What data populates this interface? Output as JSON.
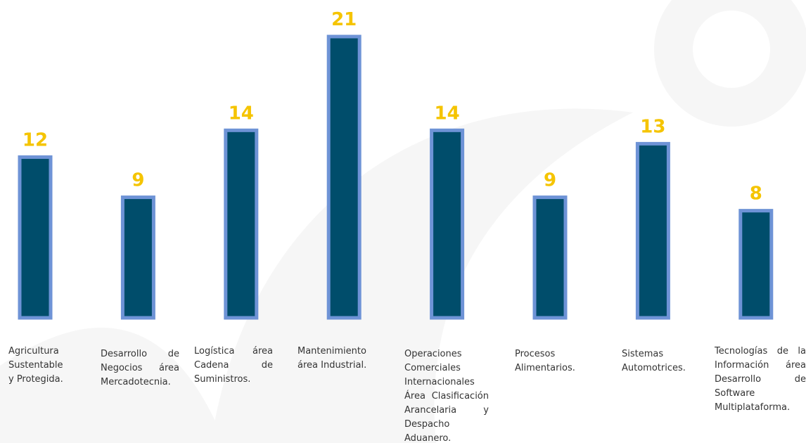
{
  "chart_data": {
    "type": "bar",
    "categories": [
      "Agricultura Sustentable y Protegida.",
      "Desarrollo de Negocios área Mercadotecnia.",
      "Logística área Cadena de Suministros.",
      "Mantenimiento área Industrial.",
      "Operaciones Comerciales Internacionales Área Clasificación Arancelaria y Despacho Aduanero.",
      "Procesos Alimentarios.",
      "Sistemas Automotrices.",
      "Tecnologías de la Información área Desarrollo de Software Multiplataforma."
    ],
    "values": [
      12,
      9,
      14,
      21,
      14,
      9,
      13,
      8
    ],
    "color": "#004d6b",
    "border_color": "#6e93d6",
    "label_color": "#f5c400"
  }
}
